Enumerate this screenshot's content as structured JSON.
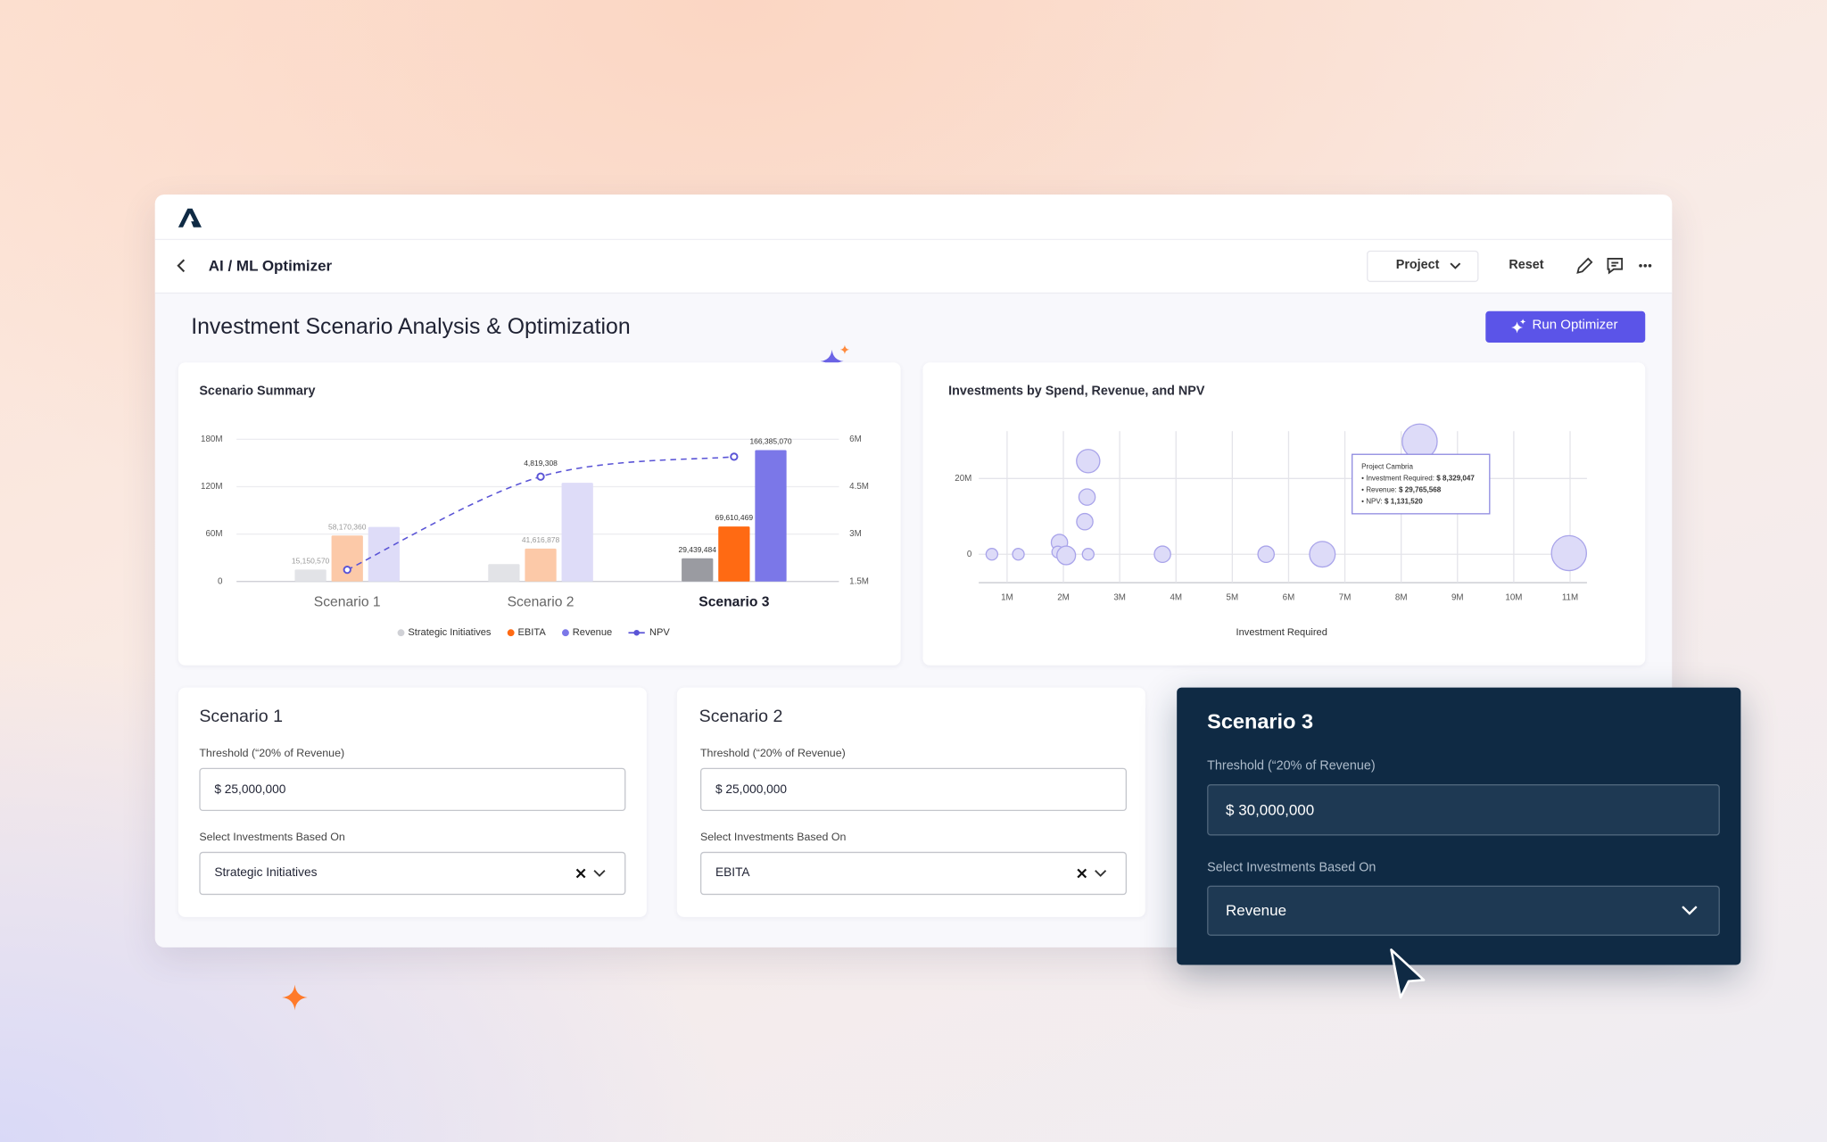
{
  "app": {
    "nav_title": "AI / ML Optimizer",
    "project": "Project",
    "reset": "Reset",
    "page_title": "Investment Scenario Analysis & Optimization",
    "run_button": "Run Optimizer"
  },
  "chart_data": [
    {
      "type": "bar",
      "title": "Scenario Summary",
      "categories": [
        "Scenario 1",
        "Scenario 2",
        "Scenario 3"
      ],
      "selected": 2,
      "series": [
        {
          "name": "Strategic Initiatives",
          "color": "#9a9ba1",
          "muted_color": "#e2e3e7",
          "values": [
            15150570,
            22000000,
            29439484
          ],
          "value_labels": [
            "15,150,570",
            null,
            "29,439,484"
          ]
        },
        {
          "name": "EBITA",
          "color": "#ff6a13",
          "muted_color": "#fcc9a8",
          "values": [
            58170360,
            41616878,
            69610469
          ],
          "value_labels": [
            "58,170,360",
            "41,616,878",
            "69,610,469"
          ]
        },
        {
          "name": "Revenue",
          "color": "#7b77e8",
          "muted_color": "#dedcf8",
          "values": [
            69000000,
            125000000,
            166385070
          ],
          "value_labels": [
            null,
            null,
            "166,385,070"
          ]
        },
        {
          "name": "NPV",
          "type": "line",
          "axis": "y2",
          "color": "#5a54d6",
          "values": [
            1870000,
            4819308,
            5450000
          ],
          "value_labels": [
            null,
            "4,819,308",
            null
          ]
        }
      ],
      "ylim": [
        0,
        180000000
      ],
      "yticks": [
        0,
        {
          "value": 60000000,
          "label": "60M"
        },
        {
          "value": 120000000,
          "label": "120M"
        },
        {
          "value": 180000000,
          "label": "180M"
        }
      ],
      "y2lim": [
        1500000,
        6000000
      ],
      "y2ticks": [
        {
          "value": 1500000,
          "label": "1.5M"
        },
        {
          "value": 3000000,
          "label": "3M"
        },
        {
          "value": 4500000,
          "label": "4.5M"
        },
        {
          "value": 6000000,
          "label": "6M"
        }
      ],
      "grid": true,
      "legend": "bottom"
    },
    {
      "type": "scatter",
      "title": "Investments by Spend, Revenue, and NPV",
      "x_label": "Investment Required",
      "x": [
        730000,
        1200000,
        1930000,
        1900000,
        2050000,
        2440000,
        2420000,
        2380000,
        2440000,
        3760000,
        5600000,
        6600000,
        8329047,
        10980000
      ],
      "values": [
        0,
        0,
        3100000,
        600000,
        -300000,
        24600000,
        15100000,
        8600000,
        0,
        0,
        0,
        0,
        29765568,
        300000
      ],
      "sizes": [
        125000,
        125000,
        246000,
        125000,
        322000,
        503000,
        246000,
        246000,
        125000,
        246000,
        246000,
        608000,
        1131520,
        1131520
      ],
      "color": "#dddbf8",
      "edge_color": "#a9a4ea",
      "xlim": [
        600000,
        11300000
      ],
      "xticks": [
        {
          "value": 1000000,
          "label": "1M"
        },
        {
          "value": 2000000,
          "label": "2M"
        },
        {
          "value": 3000000,
          "label": "3M"
        },
        {
          "value": 4000000,
          "label": "4M"
        },
        {
          "value": 5000000,
          "label": "5M"
        },
        {
          "value": 6000000,
          "label": "6M"
        },
        {
          "value": 7000000,
          "label": "7M"
        },
        {
          "value": 8000000,
          "label": "8M"
        },
        {
          "value": 9000000,
          "label": "9M"
        },
        {
          "value": 10000000,
          "label": "10M"
        },
        {
          "value": 11000000,
          "label": "11M"
        }
      ],
      "ylim": [
        -7500000,
        32500000
      ],
      "yticks": [
        0,
        {
          "value": 20000000,
          "label": "20M"
        }
      ],
      "grid": true,
      "tooltip": {
        "point": 12,
        "title": "Project Cambria",
        "lines": [
          {
            "label": "• Investment Required:",
            "value": "$ 8,329,047"
          },
          {
            "label": "• Revenue:",
            "value": "$ 29,765,568"
          },
          {
            "label": "• NPV:",
            "value": "$ 1,131,520"
          }
        ]
      }
    }
  ],
  "scenarios": [
    {
      "title": "Scenario 1",
      "threshold_label": "Threshold (“20% of Revenue)",
      "threshold": "$ 25,000,000",
      "select_label": "Select Investments Based On",
      "select_value": "Strategic Initiatives"
    },
    {
      "title": "Scenario 2",
      "threshold_label": "Threshold (“20% of Revenue)",
      "threshold": "$ 25,000,000",
      "select_label": "Select Investments Based On",
      "select_value": "EBITA"
    },
    {
      "title": "Scenario 3",
      "threshold_label": "Threshold (“20% of Revenue)",
      "threshold": "$ 30,000,000",
      "select_label": "Select Investments Based On",
      "select_value": "Revenue"
    }
  ]
}
